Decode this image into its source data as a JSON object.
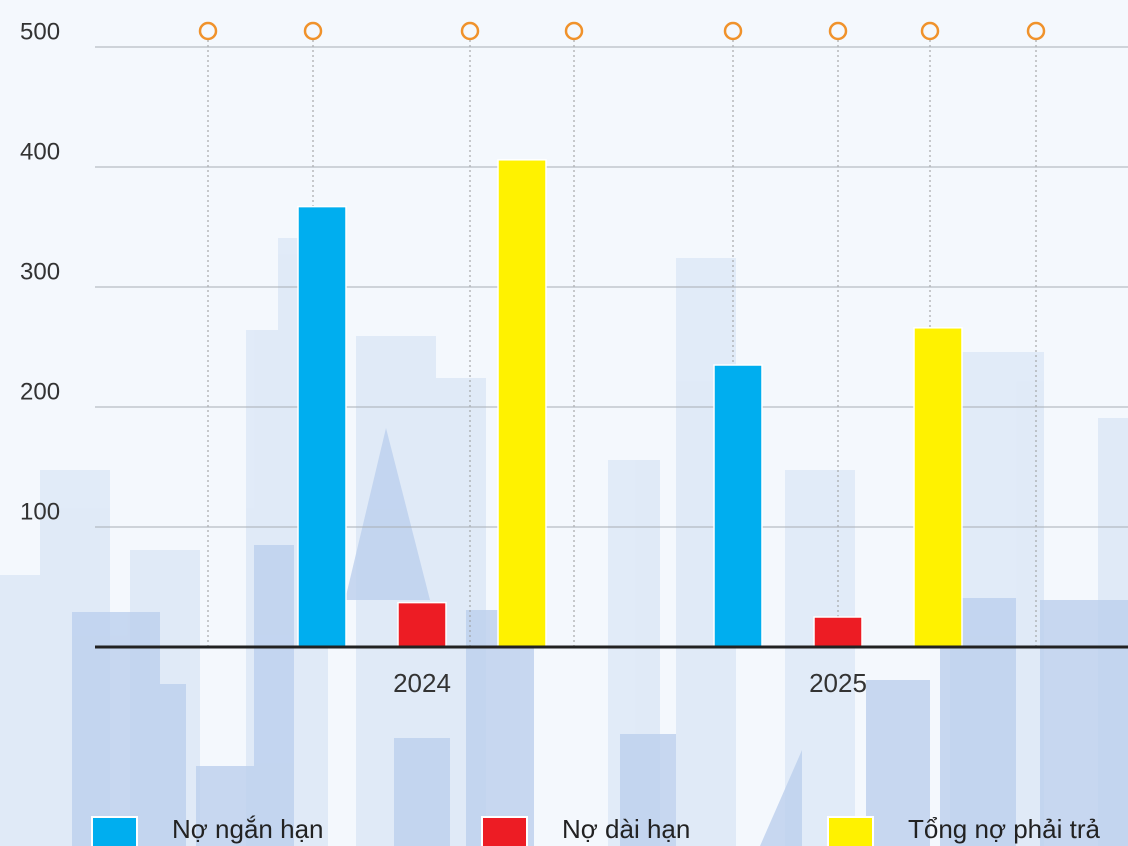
{
  "chart_data": {
    "type": "bar",
    "categories": [
      "2024",
      "2025"
    ],
    "series": [
      {
        "name": "Nợ ngắn hạn",
        "color": "#00aeef",
        "values": [
          367,
          235
        ]
      },
      {
        "name": "Nợ dài hạn",
        "color": "#ed1c24",
        "values": [
          37,
          25
        ]
      },
      {
        "name": "Tổng nợ phải trả",
        "color": "#fff200",
        "values": [
          406,
          266
        ]
      }
    ],
    "ylim": [
      0,
      500
    ],
    "yticks": [
      100,
      200,
      300,
      400,
      500
    ],
    "grid": true,
    "legend": "bottom"
  }
}
